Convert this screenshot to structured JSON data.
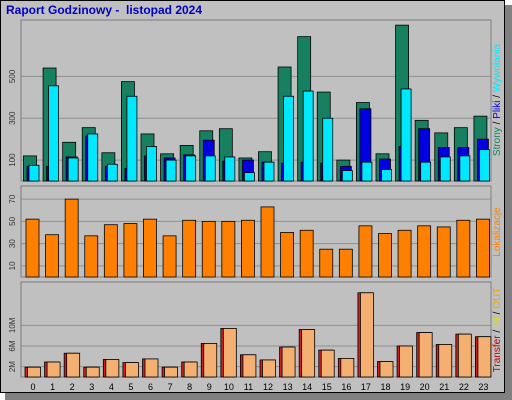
{
  "title": "Raport Godzinowy -  listopad 2024",
  "hours": [
    "0",
    "1",
    "2",
    "3",
    "4",
    "5",
    "6",
    "7",
    "8",
    "9",
    "10",
    "11",
    "12",
    "13",
    "14",
    "15",
    "16",
    "17",
    "18",
    "19",
    "20",
    "21",
    "22",
    "23"
  ],
  "colors": {
    "strony": "#168060",
    "pliki": "#0000e0",
    "wywolania": "#00e8ff",
    "lokalizacje": "#ff8000",
    "in": "#d02020",
    "out": "#f4b070",
    "transfer_label": "#c00000",
    "in_label": "#e0e000",
    "out_label": "#f0a000"
  },
  "side_labels": {
    "strony": "Strony",
    "sep1": " / ",
    "pliki": "Pliki",
    "sep2": " / ",
    "wywolania": "Wywołania",
    "lokalizacje": "Lokalizacje",
    "transfer": "Transfer",
    "sep3": " / ",
    "in": "IN",
    "sep4": " / ",
    "out": "OUT"
  },
  "chart_data": [
    {
      "type": "bar",
      "title": "",
      "ylim": [
        0,
        760
      ],
      "yticks": [
        {
          "value": 100,
          "label": "100"
        },
        {
          "value": 300,
          "label": "300"
        },
        {
          "value": 500,
          "label": "500"
        }
      ],
      "categories": [
        "0",
        "1",
        "2",
        "3",
        "4",
        "5",
        "6",
        "7",
        "8",
        "9",
        "10",
        "11",
        "12",
        "13",
        "14",
        "15",
        "16",
        "17",
        "18",
        "19",
        "20",
        "21",
        "22",
        "23"
      ],
      "series": [
        {
          "name": "Strony",
          "values": [
            120,
            540,
            185,
            255,
            135,
            475,
            225,
            130,
            170,
            240,
            250,
            110,
            140,
            545,
            690,
            425,
            100,
            375,
            130,
            745,
            290,
            230,
            255,
            310
          ]
        },
        {
          "name": "Pliki",
          "values": [
            70,
            70,
            115,
            215,
            70,
            60,
            120,
            110,
            125,
            195,
            95,
            100,
            90,
            85,
            90,
            85,
            70,
            345,
            105,
            165,
            250,
            160,
            160,
            200
          ]
        },
        {
          "name": "Wywołania",
          "values": [
            75,
            455,
            110,
            225,
            80,
            405,
            165,
            100,
            120,
            120,
            115,
            40,
            90,
            405,
            430,
            300,
            50,
            90,
            55,
            440,
            90,
            115,
            120,
            150
          ]
        }
      ]
    },
    {
      "type": "bar",
      "title": "",
      "ylim": [
        0,
        80
      ],
      "yticks": [
        {
          "value": 10,
          "label": "10"
        },
        {
          "value": 30,
          "label": "30"
        },
        {
          "value": 50,
          "label": "50"
        },
        {
          "value": 70,
          "label": "70"
        }
      ],
      "categories": [
        "0",
        "1",
        "2",
        "3",
        "4",
        "5",
        "6",
        "7",
        "8",
        "9",
        "10",
        "11",
        "12",
        "13",
        "14",
        "15",
        "16",
        "17",
        "18",
        "19",
        "20",
        "21",
        "22",
        "23"
      ],
      "series": [
        {
          "name": "Lokalizacje",
          "values": [
            52,
            38,
            70,
            37,
            47,
            48,
            52,
            37,
            51,
            50,
            50,
            51,
            63,
            40,
            42,
            25,
            25,
            46,
            39,
            42,
            46,
            45,
            51,
            52
          ]
        }
      ]
    },
    {
      "type": "bar",
      "title": "",
      "ylim": [
        0,
        18
      ],
      "yticks": [
        {
          "value": 2,
          "label": "2M"
        },
        {
          "value": 6,
          "label": "6M"
        },
        {
          "value": 10,
          "label": "10M"
        }
      ],
      "categories": [
        "0",
        "1",
        "2",
        "3",
        "4",
        "5",
        "6",
        "7",
        "8",
        "9",
        "10",
        "11",
        "12",
        "13",
        "14",
        "15",
        "16",
        "17",
        "18",
        "19",
        "20",
        "21",
        "22",
        "23"
      ],
      "series": [
        {
          "name": "IN",
          "values": [
            1.9,
            2.9,
            4.6,
            1.9,
            3.4,
            2.8,
            3.5,
            1.9,
            2.9,
            6.5,
            9.4,
            4.3,
            3.3,
            5.8,
            9.2,
            5.2,
            3.6,
            16.3,
            3.0,
            6.0,
            8.6,
            6.3,
            8.3,
            7.8
          ]
        },
        {
          "name": "OUT",
          "values": [
            1.9,
            2.9,
            4.6,
            1.9,
            3.4,
            2.8,
            3.5,
            1.9,
            2.9,
            6.5,
            9.4,
            4.3,
            3.3,
            5.8,
            9.2,
            5.2,
            3.6,
            16.3,
            3.0,
            6.0,
            8.6,
            6.3,
            8.3,
            7.8
          ]
        }
      ]
    }
  ]
}
